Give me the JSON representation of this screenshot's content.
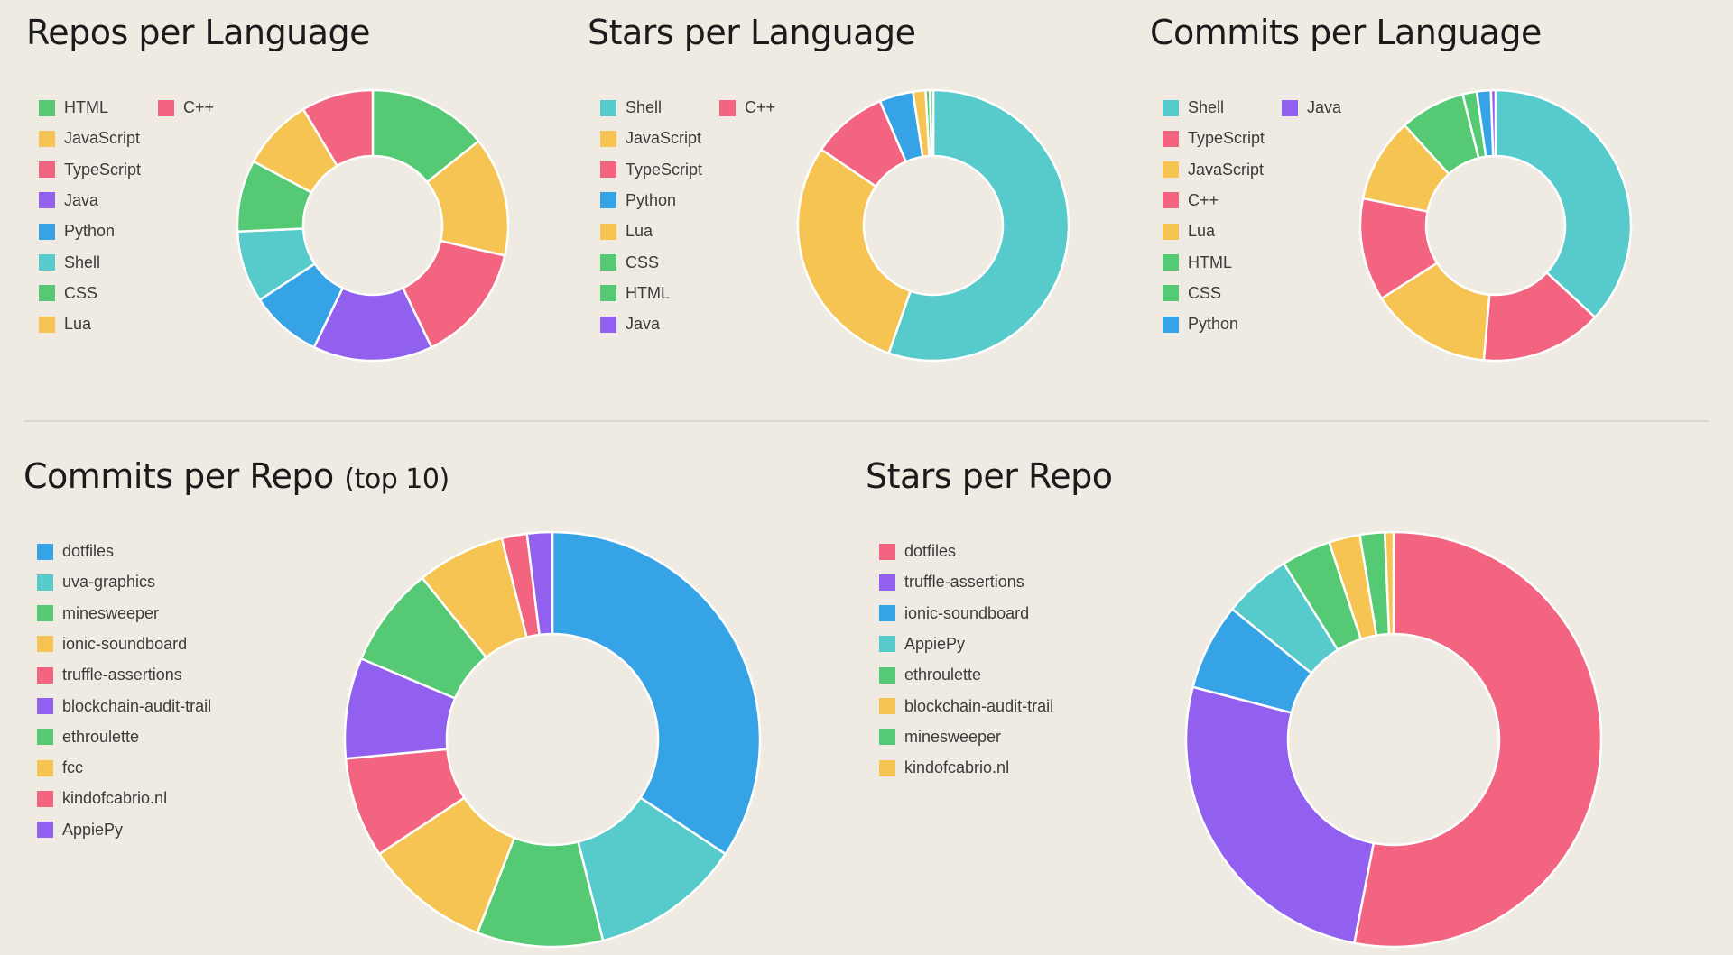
{
  "colors": {
    "green": "#55c973",
    "yellow": "#f5c453",
    "pink": "#f2647f",
    "purple": "#9160ef",
    "blue": "#36a3e6",
    "teal": "#57cacb"
  },
  "chart_data": [
    {
      "type": "pie",
      "title": "Repos per Language",
      "labels": [
        "HTML",
        "JavaScript",
        "TypeScript",
        "Java",
        "Python",
        "Shell",
        "CSS",
        "Lua",
        "C++"
      ],
      "values": [
        5,
        5,
        5,
        5,
        3,
        3,
        3,
        3,
        3
      ],
      "colors": [
        "green",
        "yellow",
        "pink",
        "purple",
        "blue",
        "teal",
        "green",
        "yellow",
        "pink"
      ]
    },
    {
      "type": "pie",
      "title": "Stars per Language",
      "labels": [
        "Shell",
        "JavaScript",
        "TypeScript",
        "Python",
        "Lua",
        "CSS",
        "HTML",
        "Java",
        "C++"
      ],
      "values": [
        55,
        29,
        9,
        4,
        1.5,
        0.5,
        0.4,
        0,
        0
      ],
      "colors": [
        "teal",
        "yellow",
        "pink",
        "blue",
        "yellow",
        "green",
        "green",
        "purple",
        "pink"
      ]
    },
    {
      "type": "pie",
      "title": "Commits per Language",
      "labels": [
        "Shell",
        "TypeScript",
        "JavaScript",
        "C++",
        "Lua",
        "HTML",
        "CSS",
        "Python",
        "Java"
      ],
      "values": [
        33,
        13,
        13,
        11,
        9,
        7,
        1.5,
        1.5,
        0.5
      ],
      "colors": [
        "teal",
        "pink",
        "yellow",
        "pink",
        "yellow",
        "green",
        "green",
        "blue",
        "purple"
      ]
    },
    {
      "type": "pie",
      "title": "Commits per Repo",
      "title_suffix": "(top 10)",
      "labels": [
        "dotfiles",
        "uva-graphics",
        "minesweeper",
        "ionic-soundboard",
        "truffle-assertions",
        "blockchain-audit-trail",
        "ethroulette",
        "fcc",
        "kindofcabrio.nl",
        "AppiePy"
      ],
      "values": [
        35,
        12,
        10,
        10,
        8,
        8,
        8,
        7,
        2,
        2
      ],
      "colors": [
        "blue",
        "teal",
        "green",
        "yellow",
        "pink",
        "purple",
        "green",
        "yellow",
        "pink",
        "purple"
      ]
    },
    {
      "type": "pie",
      "title": "Stars per Repo",
      "labels": [
        "dotfiles",
        "truffle-assertions",
        "ionic-soundboard",
        "AppiePy",
        "ethroulette",
        "blockchain-audit-trail",
        "minesweeper",
        "kindofcabrio.nl"
      ],
      "values": [
        55,
        27,
        7,
        5.5,
        4,
        2.5,
        2,
        0.7
      ],
      "colors": [
        "pink",
        "purple",
        "blue",
        "teal",
        "green",
        "yellow",
        "green",
        "yellow"
      ]
    }
  ]
}
